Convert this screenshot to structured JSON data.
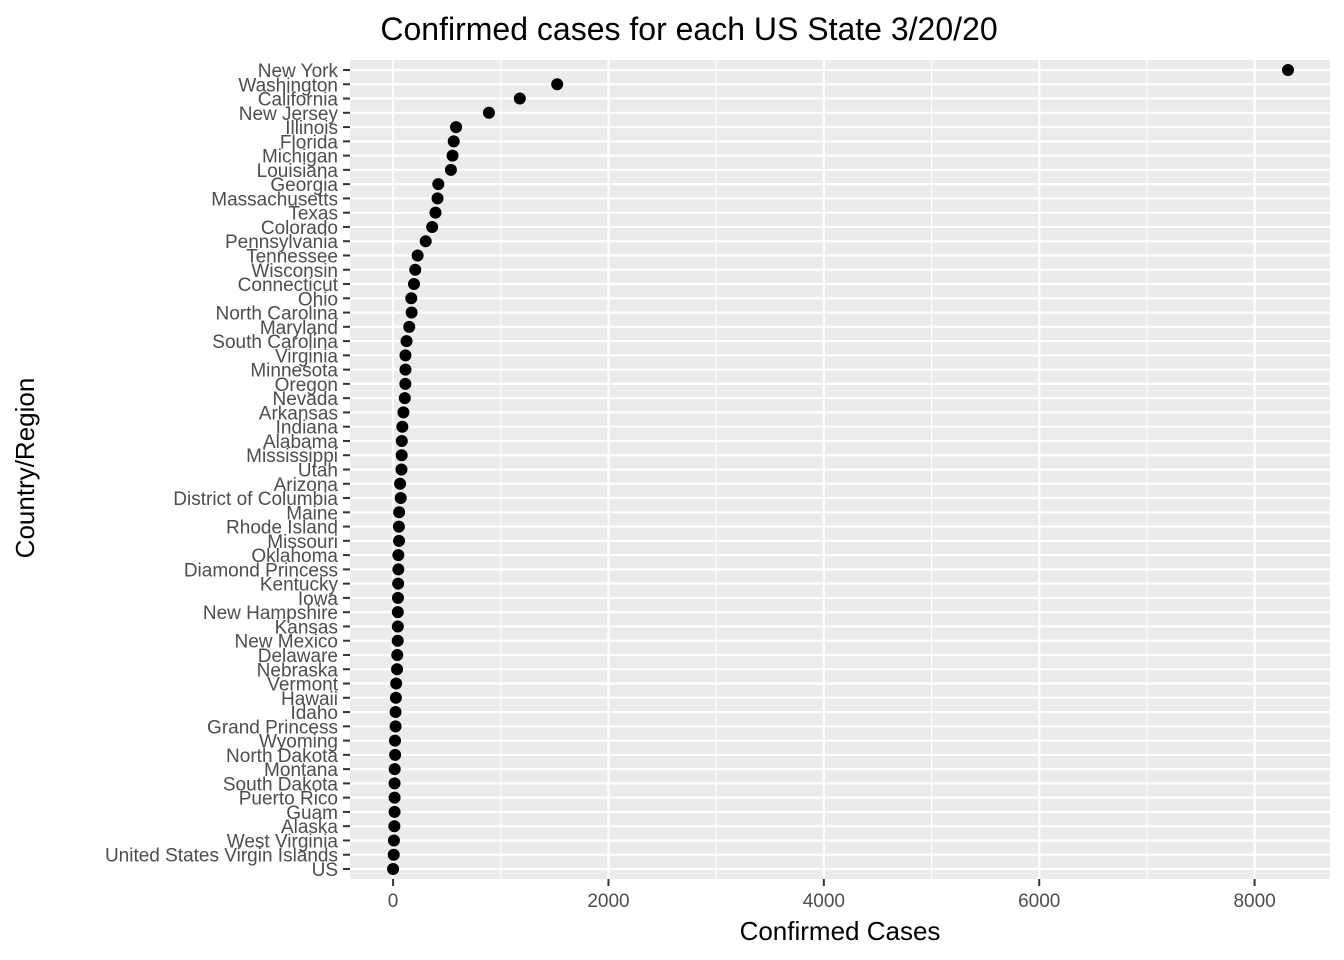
{
  "chart_data": {
    "type": "scatter",
    "title": "Confirmed cases for each US State 3/20/20",
    "xlabel": "Confirmed Cases",
    "ylabel": "Country/Region",
    "xlim": [
      -400,
      8700
    ],
    "x_ticks": [
      0,
      2000,
      4000,
      6000,
      8000
    ],
    "x_tick_labels": [
      "0",
      "2000",
      "4000",
      "6000",
      "8000"
    ],
    "grid": true,
    "legend": "none",
    "colors": {
      "panel": "#ebebeb",
      "grid_major": "#ffffff",
      "point": "#000000",
      "tick_text": "#4d4d4d",
      "tick_line": "#333333"
    },
    "categories": [
      "New York",
      "Washington",
      "California",
      "New Jersey",
      "Illinois",
      "Florida",
      "Michigan",
      "Louisiana",
      "Georgia",
      "Massachusetts",
      "Texas",
      "Colorado",
      "Pennsylvania",
      "Tennessee",
      "Wisconsin",
      "Connecticut",
      "Ohio",
      "North Carolina",
      "Maryland",
      "South Carolina",
      "Virginia",
      "Minnesota",
      "Oregon",
      "Nevada",
      "Arkansas",
      "Indiana",
      "Alabama",
      "Mississippi",
      "Utah",
      "Arizona",
      "District of Columbia",
      "Maine",
      "Rhode Island",
      "Missouri",
      "Oklahoma",
      "Diamond Princess",
      "Kentucky",
      "Iowa",
      "New Hampshire",
      "Kansas",
      "New Mexico",
      "Delaware",
      "Nebraska",
      "Vermont",
      "Hawaii",
      "Idaho",
      "Grand Princess",
      "Wyoming",
      "North Dakota",
      "Montana",
      "South Dakota",
      "Puerto Rico",
      "Guam",
      "Alaska",
      "West Virginia",
      "United States Virgin Islands",
      "US"
    ],
    "values": [
      8310,
      1524,
      1177,
      890,
      585,
      563,
      552,
      537,
      420,
      413,
      394,
      363,
      303,
      228,
      206,
      194,
      169,
      172,
      150,
      125,
      115,
      115,
      114,
      109,
      96,
      86,
      81,
      80,
      78,
      65,
      71,
      56,
      54,
      55,
      49,
      49,
      47,
      45,
      44,
      44,
      43,
      39,
      37,
      29,
      26,
      23,
      23,
      18,
      19,
      15,
      14,
      14,
      14,
      12,
      8,
      6,
      0
    ]
  }
}
